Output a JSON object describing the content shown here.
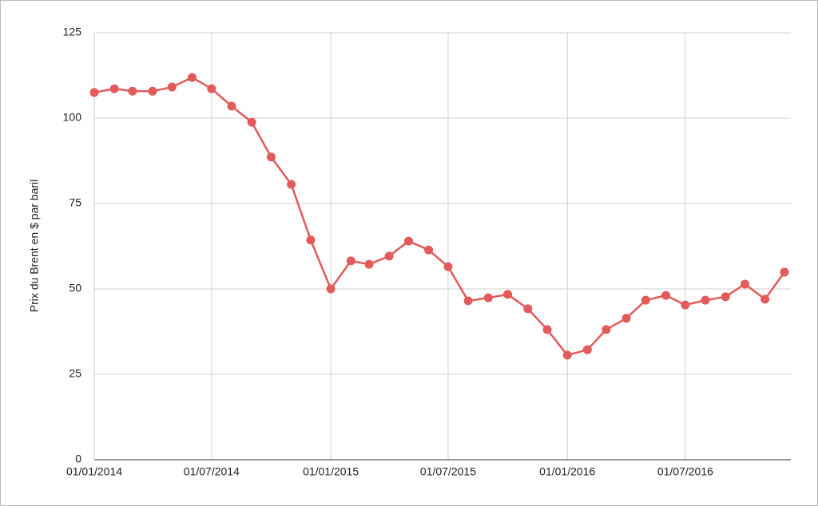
{
  "chart_data": {
    "type": "line",
    "y_label": "Prix du Brent en $ par baril",
    "x": [
      "01/01/2014",
      "01/02/2014",
      "01/03/2014",
      "01/04/2014",
      "01/05/2014",
      "01/06/2014",
      "01/07/2014",
      "01/08/2014",
      "01/09/2014",
      "01/10/2014",
      "01/11/2014",
      "01/12/2014",
      "01/01/2015",
      "01/02/2015",
      "01/03/2015",
      "01/04/2015",
      "01/05/2015",
      "01/06/2015",
      "01/07/2015",
      "01/08/2015",
      "01/09/2015",
      "01/10/2015",
      "01/11/2015",
      "01/12/2015",
      "01/01/2016",
      "01/02/2016",
      "01/03/2016",
      "01/04/2016",
      "01/05/2016",
      "01/06/2016",
      "01/07/2016",
      "01/08/2016",
      "01/09/2016",
      "01/10/2016",
      "01/11/2016",
      "01/12/2016"
    ],
    "values": [
      107.5,
      108.6,
      107.9,
      107.9,
      109.1,
      111.9,
      108.6,
      103.5,
      98.8,
      88.6,
      80.6,
      64.3,
      50,
      58.2,
      57.2,
      59.6,
      64,
      61.4,
      56.5,
      46.5,
      47.4,
      48.4,
      44.2,
      38.1,
      30.6,
      32.2,
      38.1,
      41.4,
      46.7,
      48.1,
      45.3,
      46.7,
      47.7,
      51.4,
      47,
      54.9
    ],
    "color": "#e35a5a",
    "xlim": [
      "01/01/2014",
      "01/12/2016"
    ],
    "xticks": [
      "01/01/2014",
      "01/07/2014",
      "01/01/2015",
      "01/07/2015",
      "01/01/2016",
      "01/07/2016"
    ],
    "ylim": [
      0,
      125
    ],
    "yticks": [
      0,
      25,
      50,
      75,
      100,
      125
    ],
    "grid": true
  }
}
